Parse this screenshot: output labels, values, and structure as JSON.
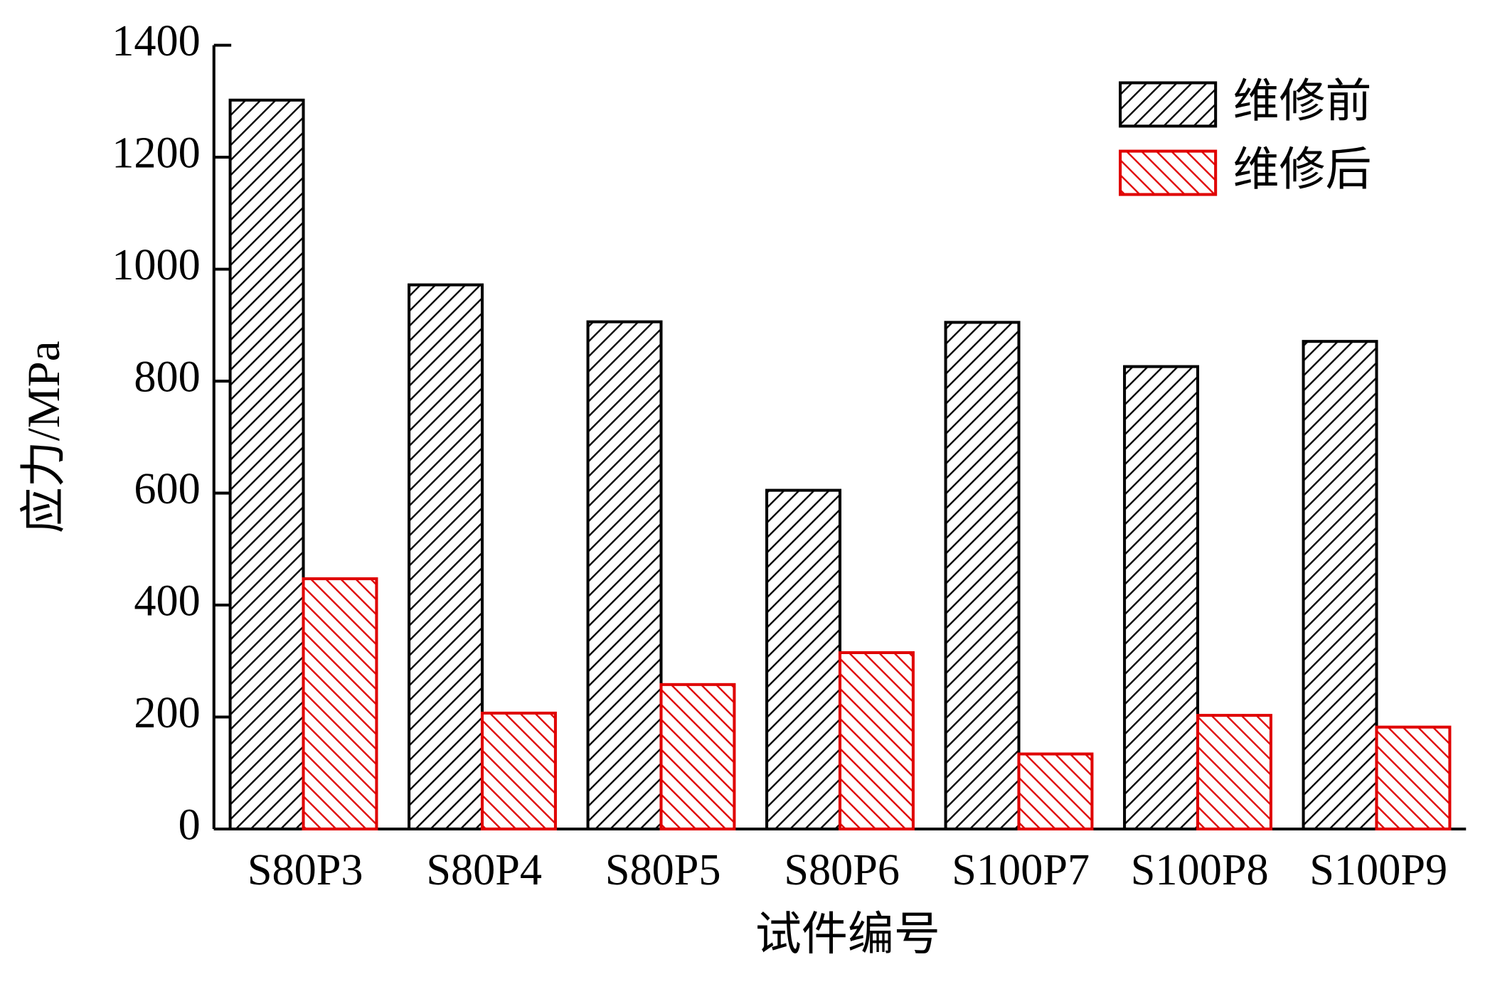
{
  "chart_data": {
    "type": "bar",
    "x_label": "试件编号",
    "y_label": "应力/MPa",
    "categories": [
      "S80P3",
      "S80P4",
      "S80P5",
      "S80P6",
      "S100P7",
      "S100P8",
      "S100P9"
    ],
    "series": [
      {
        "name": "维修前",
        "color": "#000000",
        "hatch": "/",
        "values": [
          1302,
          972,
          906,
          605,
          905,
          826,
          871
        ]
      },
      {
        "name": "维修后",
        "color": "#e00000",
        "hatch": "\\",
        "values": [
          447,
          207,
          258,
          315,
          134,
          203,
          182
        ]
      }
    ],
    "ylim": [
      0,
      1400
    ],
    "yticks": [
      0,
      200,
      400,
      600,
      800,
      1000,
      1200,
      1400
    ],
    "grid": false,
    "legend": "upper right"
  }
}
